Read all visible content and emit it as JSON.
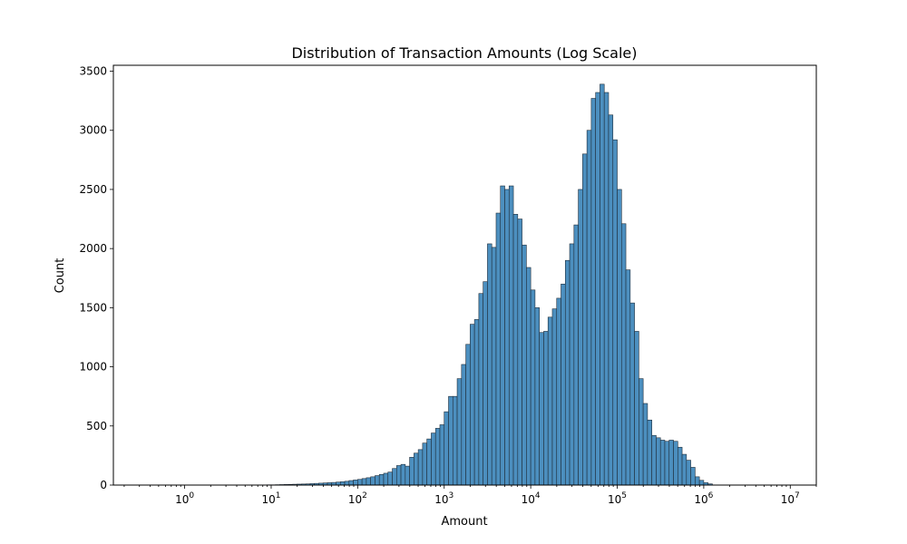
{
  "chart_data": {
    "type": "bar",
    "subtype": "histogram",
    "title": "Distribution of Transaction Amounts (Log Scale)",
    "xlabel": "Amount",
    "ylabel": "Count",
    "x_scale": "log",
    "xlim": [
      0.15,
      20000000
    ],
    "ylim": [
      0,
      3550
    ],
    "grid": false,
    "bar_color": "#4c8fbf",
    "bar_edge_color": "#1f2d3a",
    "x_ticks": [
      {
        "value": 1,
        "base": "10",
        "exp": "0"
      },
      {
        "value": 10,
        "base": "10",
        "exp": "1"
      },
      {
        "value": 100,
        "base": "10",
        "exp": "2"
      },
      {
        "value": 1000,
        "base": "10",
        "exp": "3"
      },
      {
        "value": 10000,
        "base": "10",
        "exp": "4"
      },
      {
        "value": 100000,
        "base": "10",
        "exp": "5"
      },
      {
        "value": 1000000,
        "base": "10",
        "exp": "6"
      },
      {
        "value": 10000000,
        "base": "10",
        "exp": "7"
      }
    ],
    "y_ticks": [
      "0",
      "500",
      "1000",
      "1500",
      "2000",
      "2500",
      "3000",
      "3500"
    ],
    "y_tick_values": [
      0,
      500,
      1000,
      1500,
      2000,
      2500,
      3000,
      3500
    ],
    "bins": {
      "log10_start": -0.6,
      "log10_width": 0.05,
      "counts": [
        0,
        0,
        0,
        0,
        0,
        0,
        0,
        0,
        0,
        0,
        0,
        0,
        0,
        0,
        0,
        0,
        0,
        0,
        0,
        0,
        0,
        0,
        0,
        0,
        0,
        0,
        0,
        0,
        0,
        1,
        0,
        2,
        2,
        3,
        4,
        5,
        6,
        7,
        8,
        9,
        10,
        12,
        14,
        16,
        18,
        20,
        22,
        25,
        28,
        32,
        38,
        43,
        48,
        55,
        62,
        70,
        80,
        90,
        100,
        110,
        140,
        165,
        175,
        160,
        235,
        270,
        300,
        355,
        390,
        440,
        480,
        510,
        620,
        750,
        750,
        900,
        1020,
        1190,
        1360,
        1400,
        1620,
        1720,
        2040,
        2010,
        2300,
        2530,
        2500,
        2530,
        2290,
        2250,
        2030,
        1840,
        1650,
        1500,
        1290,
        1300,
        1420,
        1490,
        1580,
        1700,
        1900,
        2040,
        2200,
        2500,
        2800,
        3000,
        3270,
        3320,
        3390,
        3320,
        3130,
        2920,
        2500,
        2210,
        1820,
        1540,
        1300,
        900,
        690,
        550,
        420,
        400,
        380,
        370,
        380,
        370,
        320,
        260,
        210,
        150,
        70,
        40,
        20,
        10,
        0,
        0,
        0,
        0,
        0,
        0
      ]
    }
  }
}
